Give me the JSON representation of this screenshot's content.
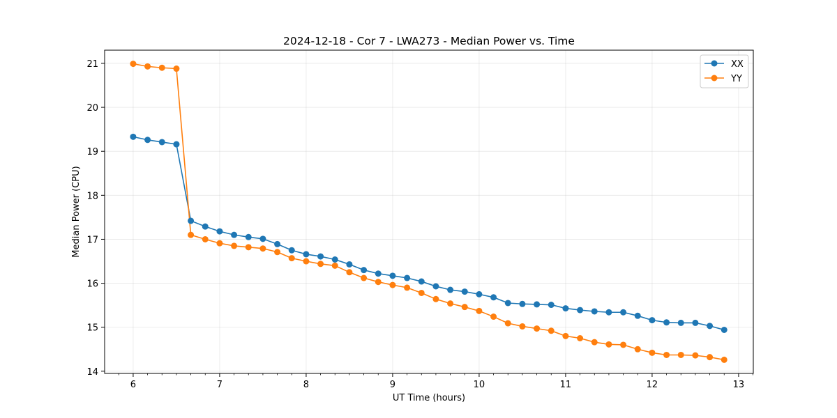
{
  "chart_data": {
    "type": "line",
    "title": "2024-12-18 - Cor 7 - LWA273 - Median Power vs. Time",
    "xlabel": "UT Time (hours)",
    "ylabel": "Median Power (CPU)",
    "xlim": [
      5.67,
      13.17
    ],
    "ylim": [
      13.95,
      21.3
    ],
    "xticks": [
      6,
      7,
      8,
      9,
      10,
      11,
      12,
      13
    ],
    "yticks": [
      14,
      15,
      16,
      17,
      18,
      19,
      20,
      21
    ],
    "grid": true,
    "legend_position": "top-right",
    "x": [
      6.0,
      6.1667,
      6.3333,
      6.5,
      6.6667,
      6.8333,
      7.0,
      7.1667,
      7.3333,
      7.5,
      7.6667,
      7.8333,
      8.0,
      8.1667,
      8.3333,
      8.5,
      8.6667,
      8.8333,
      9.0,
      9.1667,
      9.3333,
      9.5,
      9.6667,
      9.8333,
      10.0,
      10.1667,
      10.3333,
      10.5,
      10.6667,
      10.8333,
      11.0,
      11.1667,
      11.3333,
      11.5,
      11.6667,
      11.8333,
      12.0,
      12.1667,
      12.3333,
      12.5,
      12.6667,
      12.8333
    ],
    "series": [
      {
        "name": "XX",
        "color": "#1f77b4",
        "values": [
          19.33,
          19.26,
          19.21,
          19.16,
          17.42,
          17.29,
          17.18,
          17.1,
          17.05,
          17.01,
          16.89,
          16.75,
          16.66,
          16.61,
          16.54,
          16.43,
          16.3,
          16.22,
          16.17,
          16.12,
          16.04,
          15.93,
          15.85,
          15.81,
          15.75,
          15.68,
          15.55,
          15.53,
          15.52,
          15.51,
          15.43,
          15.39,
          15.36,
          15.34,
          15.34,
          15.26,
          15.16,
          15.11,
          15.1,
          15.1,
          15.03,
          14.94
        ]
      },
      {
        "name": "YY",
        "color": "#ff7f0e",
        "values": [
          20.99,
          20.93,
          20.9,
          20.88,
          17.1,
          17.0,
          16.91,
          16.85,
          16.82,
          16.79,
          16.71,
          16.57,
          16.5,
          16.44,
          16.4,
          16.25,
          16.12,
          16.03,
          15.96,
          15.9,
          15.78,
          15.64,
          15.54,
          15.46,
          15.37,
          15.24,
          15.09,
          15.02,
          14.97,
          14.92,
          14.8,
          14.75,
          14.66,
          14.61,
          14.6,
          14.5,
          14.42,
          14.37,
          14.37,
          14.36,
          14.32,
          14.26
        ]
      }
    ]
  }
}
